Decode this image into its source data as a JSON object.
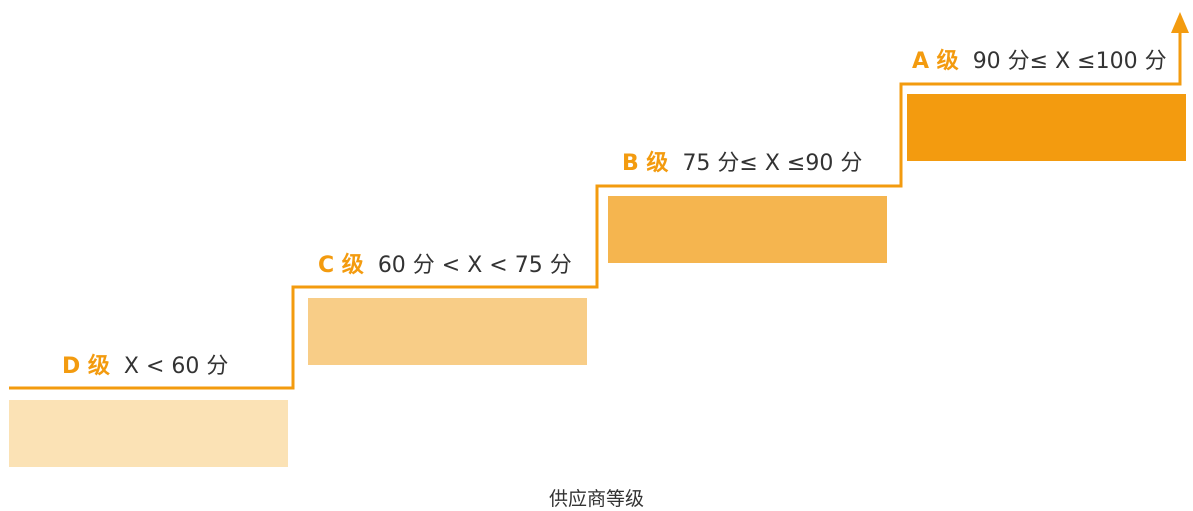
{
  "accent_color": "#f39b0f",
  "tiers": [
    {
      "grade": "D 级",
      "range": "X < 60 分",
      "color": "#fbe2b5"
    },
    {
      "grade": "C 级",
      "range": "60 分 < X < 75 分",
      "color": "#f8cd87"
    },
    {
      "grade": "B 级",
      "range": "75 分≤ X ≤90 分",
      "color": "#f5b54f"
    },
    {
      "grade": "A 级",
      "range": "90 分≤ X ≤100 分",
      "color": "#f39b0f"
    }
  ],
  "caption": "供应商等级"
}
